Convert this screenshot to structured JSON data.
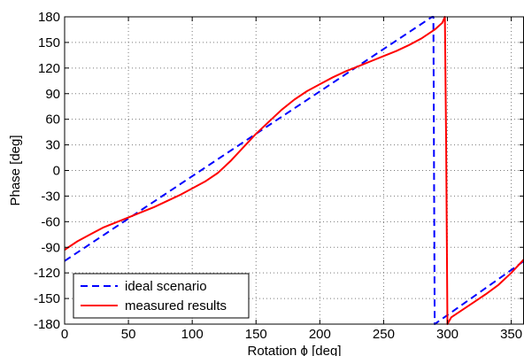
{
  "chart_data": {
    "type": "line",
    "xlabel": "Rotation ϕ [deg]",
    "ylabel": "Phase [deg]",
    "xlim": [
      0,
      360
    ],
    "ylim": [
      -180,
      180
    ],
    "xticks": [
      0,
      50,
      100,
      150,
      200,
      250,
      300,
      350
    ],
    "yticks": [
      -180,
      -150,
      -120,
      -90,
      -60,
      -30,
      0,
      30,
      60,
      90,
      120,
      150,
      180
    ],
    "grid": true,
    "legend_position": "bottom-left",
    "series": [
      {
        "name": "ideal scenario",
        "color": "#0000ff",
        "style": "dashed",
        "points": [
          [
            0,
            -106
          ],
          [
            288,
            180
          ],
          [
            289,
            180
          ],
          [
            290,
            -180
          ],
          [
            360,
            -106
          ]
        ]
      },
      {
        "name": "measured results",
        "color": "#ff0000",
        "style": "solid",
        "points": [
          [
            0,
            -93
          ],
          [
            10,
            -83
          ],
          [
            20,
            -75
          ],
          [
            30,
            -67
          ],
          [
            40,
            -61
          ],
          [
            50,
            -55
          ],
          [
            60,
            -49
          ],
          [
            70,
            -43
          ],
          [
            80,
            -36
          ],
          [
            90,
            -29
          ],
          [
            100,
            -21
          ],
          [
            110,
            -13
          ],
          [
            120,
            -3
          ],
          [
            130,
            11
          ],
          [
            140,
            27
          ],
          [
            150,
            43
          ],
          [
            160,
            57
          ],
          [
            170,
            71
          ],
          [
            180,
            83
          ],
          [
            190,
            93
          ],
          [
            200,
            101
          ],
          [
            210,
            109
          ],
          [
            220,
            116
          ],
          [
            230,
            122
          ],
          [
            240,
            128
          ],
          [
            250,
            134
          ],
          [
            260,
            140
          ],
          [
            270,
            147
          ],
          [
            280,
            155
          ],
          [
            290,
            165
          ],
          [
            296,
            173
          ],
          [
            298,
            180
          ],
          [
            299,
            30
          ],
          [
            300,
            -180
          ],
          [
            303,
            -172
          ],
          [
            310,
            -165
          ],
          [
            320,
            -155
          ],
          [
            330,
            -145
          ],
          [
            340,
            -134
          ],
          [
            350,
            -120
          ],
          [
            360,
            -104
          ]
        ]
      }
    ]
  }
}
